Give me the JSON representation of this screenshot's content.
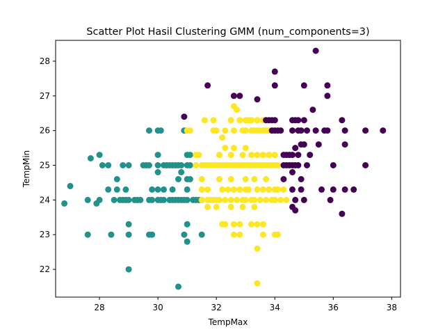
{
  "chart_data": {
    "type": "scatter",
    "title": "Scatter Plot Hasil Clustering GMM (num_components=3)",
    "xlabel": "TempMax",
    "ylabel": "TempMin",
    "xlim": [
      26.5,
      38.3
    ],
    "ylim": [
      21.2,
      28.6
    ],
    "xticks": [
      28,
      30,
      32,
      34,
      36,
      38
    ],
    "yticks": [
      22,
      23,
      24,
      25,
      26,
      27,
      28
    ],
    "grid": false,
    "legend": "none",
    "colors": {
      "purple": "#440154",
      "teal": "#21918c",
      "yellow": "#fde725"
    },
    "series": [
      {
        "color": "#21918c",
        "points": [
          [
            26.8,
            23.9
          ],
          [
            27.0,
            24.4
          ],
          [
            27.6,
            24.0
          ],
          [
            27.6,
            23.0
          ],
          [
            27.7,
            25.2
          ],
          [
            28.0,
            25.3
          ],
          [
            27.9,
            23.9
          ],
          [
            28.0,
            24.0
          ],
          [
            28.1,
            25.0
          ],
          [
            28.3,
            25.0
          ],
          [
            28.3,
            24.3
          ],
          [
            28.4,
            23.0
          ],
          [
            28.5,
            24.0
          ],
          [
            28.6,
            24.3
          ],
          [
            28.6,
            24.6
          ],
          [
            28.7,
            24.0
          ],
          [
            28.8,
            25.0
          ],
          [
            28.8,
            24.0
          ],
          [
            28.9,
            24.0
          ],
          [
            28.9,
            24.3
          ],
          [
            29.0,
            25.0
          ],
          [
            29.0,
            24.0
          ],
          [
            29.0,
            23.3
          ],
          [
            29.0,
            23.0
          ],
          [
            29.0,
            22.0
          ],
          [
            29.2,
            24.0
          ],
          [
            29.3,
            24.0
          ],
          [
            29.4,
            24.0
          ],
          [
            29.5,
            25.0
          ],
          [
            29.6,
            25.0
          ],
          [
            29.7,
            25.0
          ],
          [
            29.7,
            24.0
          ],
          [
            29.8,
            24.3
          ],
          [
            29.7,
            23.0
          ],
          [
            29.8,
            23.0
          ],
          [
            29.7,
            26.0
          ],
          [
            29.8,
            24.0
          ],
          [
            30.0,
            24.3
          ],
          [
            30.0,
            24.0
          ],
          [
            30.0,
            25.0
          ],
          [
            30.0,
            24.8
          ],
          [
            30.0,
            25.3
          ],
          [
            30.0,
            26.0
          ],
          [
            30.1,
            26.0
          ],
          [
            30.1,
            24.0
          ],
          [
            30.2,
            25.0
          ],
          [
            30.2,
            24.3
          ],
          [
            30.2,
            24.0
          ],
          [
            30.3,
            25.0
          ],
          [
            30.4,
            25.0
          ],
          [
            30.4,
            24.0
          ],
          [
            30.5,
            25.0
          ],
          [
            30.5,
            24.3
          ],
          [
            30.5,
            24.0
          ],
          [
            30.6,
            25.0
          ],
          [
            30.6,
            24.0
          ],
          [
            30.7,
            25.0
          ],
          [
            30.7,
            24.6
          ],
          [
            30.7,
            24.0
          ],
          [
            30.8,
            25.0
          ],
          [
            30.8,
            24.0
          ],
          [
            30.8,
            24.8
          ],
          [
            30.7,
            21.5
          ],
          [
            30.9,
            26.0
          ],
          [
            30.9,
            24.0
          ],
          [
            30.9,
            23.0
          ],
          [
            31.0,
            25.3
          ],
          [
            31.0,
            25.0
          ],
          [
            31.0,
            24.6
          ],
          [
            31.0,
            24.3
          ],
          [
            31.0,
            24.0
          ],
          [
            31.0,
            23.3
          ],
          [
            31.0,
            22.8
          ],
          [
            31.1,
            25.3
          ],
          [
            31.1,
            25.0
          ],
          [
            31.2,
            24.0
          ],
          [
            31.3,
            24.0
          ],
          [
            31.4,
            24.0
          ],
          [
            31.5,
            24.0
          ],
          [
            31.5,
            23.0
          ],
          [
            31.1,
            24.6
          ]
        ]
      },
      {
        "color": "#fde725",
        "points": [
          [
            31.0,
            26.0
          ],
          [
            31.1,
            26.0
          ],
          [
            31.3,
            25.3
          ],
          [
            31.4,
            25.3
          ],
          [
            31.3,
            25.0
          ],
          [
            31.5,
            25.0
          ],
          [
            31.6,
            25.0
          ],
          [
            31.7,
            25.0
          ],
          [
            31.8,
            25.0
          ],
          [
            31.9,
            25.0
          ],
          [
            32.0,
            25.0
          ],
          [
            31.5,
            24.6
          ],
          [
            31.5,
            24.3
          ],
          [
            31.5,
            24.0
          ],
          [
            31.7,
            24.3
          ],
          [
            31.7,
            24.0
          ],
          [
            31.8,
            24.0
          ],
          [
            31.9,
            24.0
          ],
          [
            32.0,
            24.0
          ],
          [
            31.7,
            23.8
          ],
          [
            32.0,
            23.8
          ],
          [
            31.9,
            26.3
          ],
          [
            31.9,
            26.0
          ],
          [
            32.0,
            26.0
          ],
          [
            31.6,
            26.3
          ],
          [
            32.1,
            25.3
          ],
          [
            32.1,
            25.0
          ],
          [
            32.1,
            24.6
          ],
          [
            32.1,
            24.0
          ],
          [
            32.2,
            25.8
          ],
          [
            32.2,
            25.0
          ],
          [
            32.2,
            24.3
          ],
          [
            32.2,
            23.3
          ],
          [
            32.3,
            23.3
          ],
          [
            32.3,
            24.0
          ],
          [
            32.3,
            25.0
          ],
          [
            32.3,
            25.5
          ],
          [
            32.3,
            26.0
          ],
          [
            32.4,
            24.3
          ],
          [
            32.4,
            25.0
          ],
          [
            32.5,
            26.3
          ],
          [
            32.5,
            25.3
          ],
          [
            32.5,
            25.0
          ],
          [
            32.5,
            24.6
          ],
          [
            32.5,
            24.0
          ],
          [
            32.5,
            23.8
          ],
          [
            32.6,
            26.7
          ],
          [
            32.6,
            26.0
          ],
          [
            32.6,
            25.5
          ],
          [
            32.6,
            25.0
          ],
          [
            32.6,
            24.3
          ],
          [
            32.6,
            23.3
          ],
          [
            32.6,
            23.0
          ],
          [
            32.7,
            26.6
          ],
          [
            32.7,
            25.0
          ],
          [
            32.7,
            24.0
          ],
          [
            32.8,
            26.3
          ],
          [
            32.8,
            25.0
          ],
          [
            32.8,
            24.3
          ],
          [
            32.8,
            23.3
          ],
          [
            32.8,
            23.0
          ],
          [
            32.9,
            26.0
          ],
          [
            32.9,
            25.3
          ],
          [
            32.9,
            25.0
          ],
          [
            32.9,
            24.0
          ],
          [
            32.9,
            23.8
          ],
          [
            33.0,
            26.3
          ],
          [
            33.0,
            26.0
          ],
          [
            33.0,
            25.5
          ],
          [
            33.0,
            25.0
          ],
          [
            33.0,
            24.6
          ],
          [
            33.0,
            24.3
          ],
          [
            33.0,
            24.0
          ],
          [
            33.1,
            26.3
          ],
          [
            33.1,
            25.0
          ],
          [
            33.1,
            24.3
          ],
          [
            33.2,
            26.3
          ],
          [
            33.2,
            26.0
          ],
          [
            33.2,
            25.3
          ],
          [
            33.2,
            25.0
          ],
          [
            33.2,
            24.0
          ],
          [
            33.2,
            23.3
          ],
          [
            33.3,
            26.0
          ],
          [
            33.3,
            25.0
          ],
          [
            33.3,
            24.6
          ],
          [
            33.3,
            24.0
          ],
          [
            33.3,
            23.8
          ],
          [
            33.4,
            26.3
          ],
          [
            33.4,
            26.0
          ],
          [
            33.4,
            25.3
          ],
          [
            33.4,
            25.0
          ],
          [
            33.4,
            24.3
          ],
          [
            33.4,
            23.3
          ],
          [
            33.4,
            22.6
          ],
          [
            33.4,
            21.6
          ],
          [
            33.5,
            26.0
          ],
          [
            33.5,
            25.0
          ],
          [
            33.5,
            24.0
          ],
          [
            33.6,
            26.3
          ],
          [
            33.6,
            26.0
          ],
          [
            33.6,
            25.3
          ],
          [
            33.6,
            25.0
          ],
          [
            33.6,
            24.3
          ],
          [
            33.6,
            23.3
          ],
          [
            33.6,
            23.0
          ],
          [
            33.7,
            26.0
          ],
          [
            33.7,
            25.0
          ],
          [
            33.7,
            24.6
          ],
          [
            33.7,
            24.0
          ],
          [
            33.8,
            26.0
          ],
          [
            33.8,
            25.3
          ],
          [
            33.8,
            25.0
          ],
          [
            33.8,
            24.3
          ],
          [
            33.9,
            25.0
          ],
          [
            33.9,
            24.0
          ],
          [
            34.0,
            25.3
          ],
          [
            34.0,
            25.0
          ],
          [
            34.0,
            24.3
          ],
          [
            34.0,
            24.0
          ],
          [
            34.0,
            23.0
          ],
          [
            34.1,
            25.0
          ],
          [
            34.1,
            24.3
          ],
          [
            34.2,
            24.0
          ],
          [
            34.3,
            24.3
          ],
          [
            34.4,
            24.0
          ],
          [
            34.1,
            23.0
          ]
        ]
      },
      {
        "color": "#440154",
        "points": [
          [
            30.9,
            26.4
          ],
          [
            31.7,
            27.3
          ],
          [
            32.6,
            27.0
          ],
          [
            32.8,
            27.0
          ],
          [
            33.4,
            26.9
          ],
          [
            33.7,
            26.3
          ],
          [
            33.8,
            26.3
          ],
          [
            33.9,
            26.3
          ],
          [
            33.9,
            26.0
          ],
          [
            34.0,
            27.7
          ],
          [
            34.0,
            27.3
          ],
          [
            34.0,
            26.3
          ],
          [
            34.0,
            26.0
          ],
          [
            34.1,
            26.0
          ],
          [
            34.2,
            26.0
          ],
          [
            34.3,
            25.3
          ],
          [
            34.3,
            25.0
          ],
          [
            34.3,
            24.6
          ],
          [
            34.4,
            25.3
          ],
          [
            34.4,
            25.0
          ],
          [
            34.5,
            25.3
          ],
          [
            34.5,
            25.0
          ],
          [
            34.6,
            26.3
          ],
          [
            34.6,
            26.0
          ],
          [
            34.6,
            25.3
          ],
          [
            34.6,
            25.0
          ],
          [
            34.6,
            24.8
          ],
          [
            34.6,
            24.3
          ],
          [
            34.6,
            23.8
          ],
          [
            34.7,
            26.3
          ],
          [
            34.7,
            25.5
          ],
          [
            34.7,
            25.0
          ],
          [
            34.7,
            24.0
          ],
          [
            34.7,
            23.7
          ],
          [
            34.8,
            26.3
          ],
          [
            34.8,
            26.0
          ],
          [
            34.8,
            25.3
          ],
          [
            34.8,
            25.0
          ],
          [
            34.9,
            26.0
          ],
          [
            34.9,
            25.6
          ],
          [
            34.9,
            24.6
          ],
          [
            34.9,
            24.3
          ],
          [
            35.0,
            27.3
          ],
          [
            35.0,
            26.3
          ],
          [
            35.0,
            25.6
          ],
          [
            35.0,
            24.0
          ],
          [
            35.1,
            26.0
          ],
          [
            35.1,
            25.0
          ],
          [
            35.2,
            25.3
          ],
          [
            35.3,
            26.6
          ],
          [
            35.4,
            28.3
          ],
          [
            35.4,
            26.0
          ],
          [
            35.5,
            25.6
          ],
          [
            35.6,
            24.3
          ],
          [
            35.7,
            26.0
          ],
          [
            35.8,
            27.3
          ],
          [
            35.8,
            27.0
          ],
          [
            35.8,
            26.0
          ],
          [
            35.9,
            24.0
          ],
          [
            36.0,
            25.0
          ],
          [
            36.0,
            24.3
          ],
          [
            36.3,
            26.3
          ],
          [
            36.3,
            23.6
          ],
          [
            36.4,
            26.0
          ],
          [
            36.4,
            25.6
          ],
          [
            36.4,
            24.3
          ],
          [
            36.7,
            24.3
          ],
          [
            37.1,
            26.0
          ],
          [
            37.1,
            25.0
          ],
          [
            37.7,
            26.0
          ]
        ]
      }
    ]
  }
}
